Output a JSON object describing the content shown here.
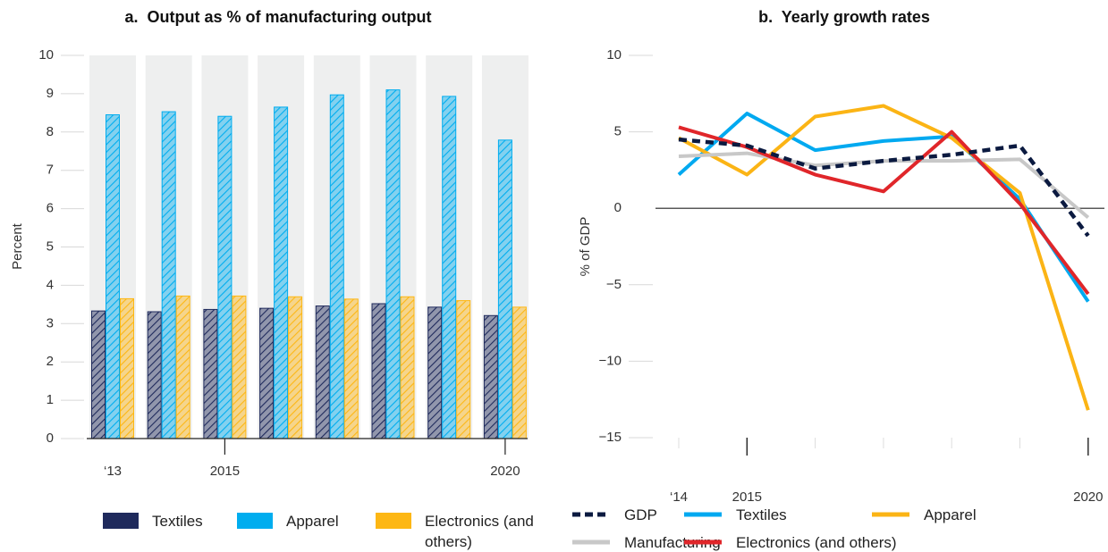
{
  "chart_data": [
    {
      "type": "bar",
      "title": "a.  Output as % of manufacturing output",
      "y_label": "Percent",
      "categories": [
        "‘13",
        null,
        "2015",
        null,
        null,
        null,
        null,
        "2020"
      ],
      "series": [
        {
          "name": "Textiles",
          "color": "#1f2a5c",
          "values": [
            3.33,
            3.31,
            3.37,
            3.4,
            3.46,
            3.52,
            3.43,
            3.21
          ]
        },
        {
          "name": "Apparel",
          "color": "#00adef",
          "values": [
            8.45,
            8.53,
            8.41,
            8.65,
            8.97,
            9.1,
            8.93,
            7.79
          ]
        },
        {
          "name": "Electronics (and others)",
          "color": "#fdb714",
          "values": [
            3.65,
            3.72,
            3.72,
            3.7,
            3.64,
            3.7,
            3.6,
            3.43
          ]
        }
      ],
      "ylim": [
        0,
        10
      ],
      "yticks": [
        0,
        1,
        2,
        3,
        4,
        5,
        6,
        7,
        8,
        9,
        10
      ],
      "hatched": true,
      "legend": "bottom"
    },
    {
      "type": "line",
      "title": "b.  Yearly growth rates",
      "y_label": "% of GDP",
      "categories": [
        "‘14",
        "2015",
        null,
        null,
        null,
        null,
        "2020"
      ],
      "series": [
        {
          "name": "GDP",
          "color": "#0b1a40",
          "dashed": true,
          "values": [
            4.5,
            4.1,
            2.6,
            3.1,
            3.5,
            4.1,
            -1.8
          ]
        },
        {
          "name": "Textiles",
          "color": "#00a9f0",
          "values": [
            2.2,
            6.2,
            3.8,
            4.4,
            4.7,
            0.6,
            -6.1
          ]
        },
        {
          "name": "Apparel",
          "color": "#fbb415",
          "values": [
            4.6,
            2.2,
            6.0,
            6.7,
            4.6,
            1.0,
            -13.2
          ]
        },
        {
          "name": "Manufacturing",
          "color": "#c8c8c8",
          "values": [
            3.4,
            3.6,
            2.8,
            3.1,
            3.1,
            3.2,
            -0.6
          ]
        },
        {
          "name": "Electronics (and others)",
          "color": "#e0262a",
          "values": [
            5.3,
            4.0,
            2.2,
            1.1,
            5.0,
            0.3,
            -5.6
          ]
        }
      ],
      "ylim": [
        -15,
        10
      ],
      "yticks": [
        {
          "value": -15,
          "label": "−15"
        },
        {
          "value": -10,
          "label": "−10"
        },
        {
          "value": -5,
          "label": "−5"
        },
        0,
        5,
        10
      ],
      "legend": "bottom"
    }
  ]
}
